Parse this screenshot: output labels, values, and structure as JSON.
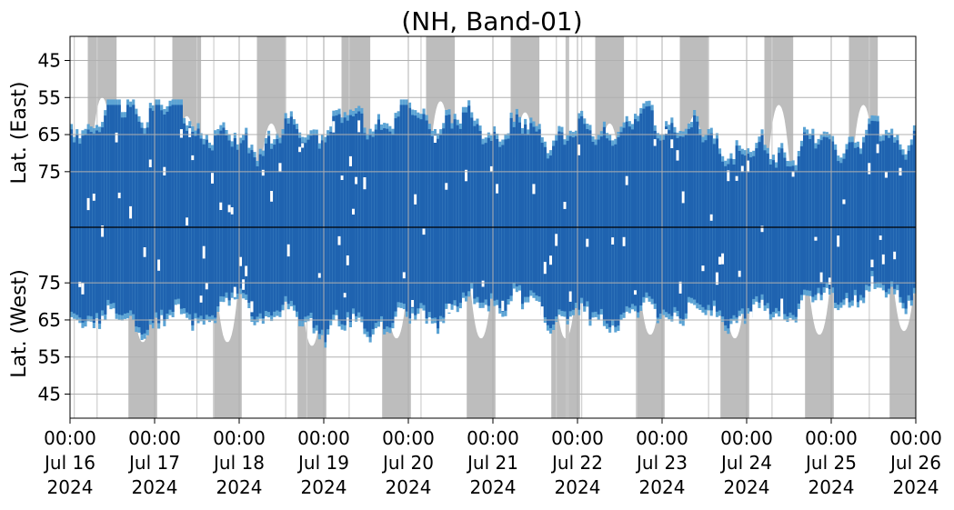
{
  "chart_data": {
    "type": "heatmap",
    "title": "(NH, Band-01)",
    "ylabel_top": "Lat. (East)",
    "ylabel_bottom": "Lat. (West)",
    "y_ticks_top": [
      "45",
      "55",
      "65",
      "75"
    ],
    "y_ticks_bottom": [
      "75",
      "65",
      "55",
      "45"
    ],
    "x_tick_labels": [
      [
        "00:00",
        "Jul 16",
        "2024"
      ],
      [
        "00:00",
        "Jul 17",
        "2024"
      ],
      [
        "00:00",
        "Jul 18",
        "2024"
      ],
      [
        "00:00",
        "Jul 19",
        "2024"
      ],
      [
        "00:00",
        "Jul 20",
        "2024"
      ],
      [
        "00:00",
        "Jul 21",
        "2024"
      ],
      [
        "00:00",
        "Jul 22",
        "2024"
      ],
      [
        "00:00",
        "Jul 23",
        "2024"
      ],
      [
        "00:00",
        "Jul 24",
        "2024"
      ],
      [
        "00:00",
        "Jul 25",
        "2024"
      ],
      [
        "00:00",
        "Jul 26",
        "2024"
      ]
    ],
    "x_range_days": [
      "2024-07-16",
      "2024-07-26"
    ],
    "grid": true,
    "colors": {
      "dark_blue": "#1f63b0",
      "light_blue": "#5ba3d4",
      "gray": "#bdbdbd",
      "grid": "#b0b0b0"
    },
    "activity_east_edge_by_day": [
      63,
      57,
      69,
      63,
      61,
      64,
      66,
      62,
      71,
      68,
      65
    ],
    "activity_west_edge_by_day": [
      68,
      65,
      70,
      64,
      66,
      72,
      66,
      69,
      67,
      72,
      74
    ],
    "gray_east_edge_by_noon": [
      55,
      60,
      62,
      60,
      56,
      59,
      62,
      60,
      57,
      57
    ],
    "gray_west_edge_by_noon": [
      59,
      59,
      58,
      60,
      60,
      60,
      61,
      60,
      61,
      62
    ]
  }
}
